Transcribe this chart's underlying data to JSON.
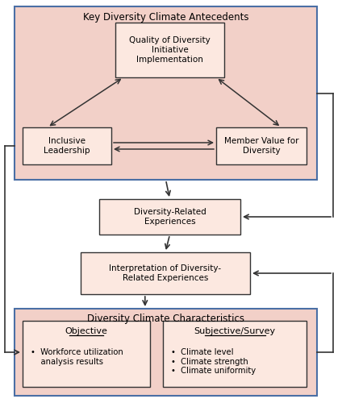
{
  "bg_color": "#ffffff",
  "box_fill_pink": "#f2d0c8",
  "box_fill_light": "#fce8e0",
  "box_border_blue": "#4a6fa5",
  "box_border_dark": "#333333",
  "title_antecedents": "Key Diversity Climate Antecedents",
  "title_characteristics": "Diversity Climate Characteristics",
  "box_quality": "Quality of Diversity\nInitiative\nImplementation",
  "box_leadership": "Inclusive\nLeadership",
  "box_member": "Member Value for\nDiversity",
  "box_experiences": "Diversity-Related\nExperiences",
  "box_interpretation": "Interpretation of Diversity-\nRelated Experiences",
  "label_objective": "Objective",
  "label_subjective": "Subjective/Survey",
  "bullet_objective": "•  Workforce utilization\n    analysis results",
  "bullet_subjective": "•  Climate level\n•  Climate strength\n•  Climate uniformity",
  "figsize": [
    4.24,
    5.0
  ],
  "dpi": 100
}
